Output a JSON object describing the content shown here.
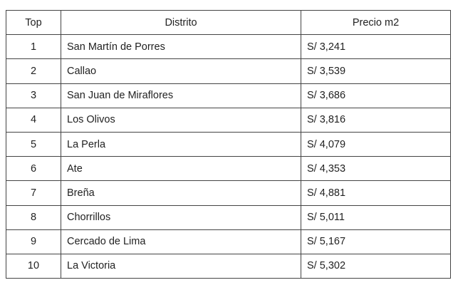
{
  "table": {
    "headers": [
      "Top",
      "Distrito",
      "Precio m2"
    ],
    "rows": [
      [
        "1",
        "San Martín de Porres",
        "S/ 3,241"
      ],
      [
        "2",
        "Callao",
        "S/ 3,539"
      ],
      [
        "3",
        "San Juan de Miraflores",
        "S/ 3,686"
      ],
      [
        "4",
        "Los Olivos",
        "S/ 3,816"
      ],
      [
        "5",
        "La Perla",
        "S/ 4,079"
      ],
      [
        "6",
        "Ate",
        "S/ 4,353"
      ],
      [
        "7",
        "Breña",
        "S/ 4,881"
      ],
      [
        "8",
        "Chorrillos",
        "S/ 5,011"
      ],
      [
        "9",
        "Cercado de Lima",
        "S/ 5,167"
      ],
      [
        "10",
        "La Victoria",
        "S/ 5,302"
      ]
    ]
  }
}
